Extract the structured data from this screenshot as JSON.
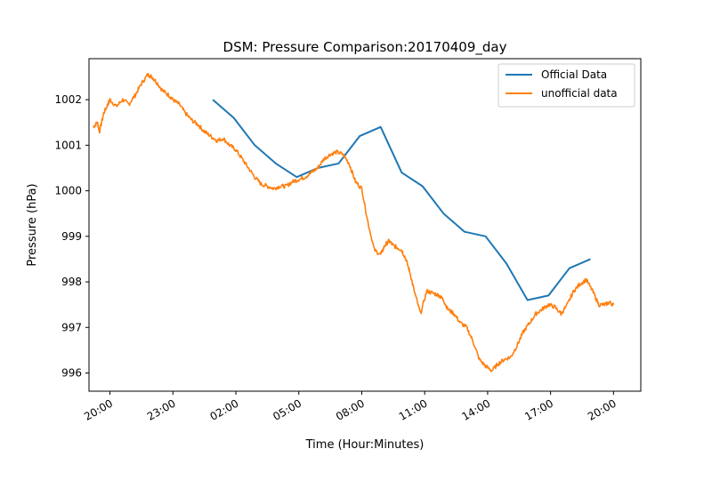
{
  "chart_data": {
    "type": "line",
    "title": "DSM: Pressure Comparison:20170409_day",
    "xlabel": "Time (Hour:Minutes)",
    "ylabel": "Pressure (hPa)",
    "x_unit": "hours from 20:00 on first day (axis shows clock time)",
    "xlim": [
      -1.0,
      25.3
    ],
    "ylim": [
      995.6,
      1002.9
    ],
    "x_ticks": [
      {
        "x": 0,
        "label": "20:00"
      },
      {
        "x": 3,
        "label": "23:00"
      },
      {
        "x": 6,
        "label": "02:00"
      },
      {
        "x": 9,
        "label": "05:00"
      },
      {
        "x": 12,
        "label": "08:00"
      },
      {
        "x": 15,
        "label": "11:00"
      },
      {
        "x": 18,
        "label": "14:00"
      },
      {
        "x": 21,
        "label": "17:00"
      },
      {
        "x": 24,
        "label": "20:00"
      }
    ],
    "y_ticks": [
      {
        "y": 996,
        "label": "996"
      },
      {
        "y": 997,
        "label": "997"
      },
      {
        "y": 998,
        "label": "998"
      },
      {
        "y": 999,
        "label": "999"
      },
      {
        "y": 1000,
        "label": "1000"
      },
      {
        "y": 1001,
        "label": "1001"
      },
      {
        "y": 1002,
        "label": "1002"
      }
    ],
    "grid": false,
    "legend": "top-right",
    "series": [
      {
        "name": "Official Data",
        "color": "#1f77b4",
        "x": [
          4.9,
          5.9,
          6.9,
          7.9,
          8.9,
          9.9,
          10.9,
          11.9,
          12.9,
          13.9,
          14.9,
          15.9,
          16.9,
          17.9,
          18.9,
          19.9,
          20.9,
          21.9,
          22.9
        ],
        "y": [
          1002.0,
          1001.6,
          1001.0,
          1000.6,
          1000.3,
          1000.5,
          1000.6,
          1001.2,
          1001.4,
          1000.4,
          1000.1,
          999.5,
          999.1,
          999.0,
          998.4,
          997.6,
          997.7,
          998.3,
          998.5
        ]
      },
      {
        "name": "unofficial data",
        "color": "#ff7f0e",
        "x": [
          -0.8,
          -0.6,
          -0.5,
          -0.3,
          -0.1,
          0.0,
          0.3,
          0.6,
          0.9,
          1.2,
          1.5,
          1.8,
          2.0,
          2.2,
          2.5,
          2.8,
          3.0,
          3.3,
          3.6,
          3.9,
          4.2,
          4.5,
          4.8,
          5.1,
          5.4,
          5.7,
          6.0,
          6.3,
          6.6,
          6.9,
          7.2,
          7.5,
          7.8,
          8.1,
          8.4,
          8.7,
          9.0,
          9.3,
          9.6,
          9.9,
          10.2,
          10.5,
          10.8,
          11.1,
          11.4,
          11.7,
          12.0,
          12.3,
          12.6,
          12.9,
          13.1,
          13.3,
          13.5,
          13.7,
          13.9,
          14.1,
          14.3,
          14.5,
          14.8,
          15.1,
          15.4,
          15.7,
          15.9,
          16.1,
          16.4,
          16.7,
          17.0,
          17.3,
          17.6,
          17.9,
          18.2,
          18.5,
          18.8,
          19.1,
          19.4,
          19.7,
          20.0,
          20.3,
          20.6,
          20.9,
          21.2,
          21.5,
          21.8,
          22.1,
          22.4,
          22.7,
          23.0,
          23.3,
          23.6,
          23.8,
          24.0
        ],
        "y": [
          1001.4,
          1001.5,
          1001.3,
          1001.7,
          1001.9,
          1002.0,
          1001.85,
          1002.0,
          1001.9,
          1002.1,
          1002.35,
          1002.55,
          1002.5,
          1002.4,
          1002.2,
          1002.1,
          1002.0,
          1001.9,
          1001.7,
          1001.55,
          1001.45,
          1001.3,
          1001.2,
          1001.1,
          1001.15,
          1001.0,
          1000.9,
          1000.7,
          1000.5,
          1000.3,
          1000.15,
          1000.1,
          1000.05,
          1000.1,
          1000.1,
          1000.2,
          1000.25,
          1000.3,
          1000.4,
          1000.5,
          1000.7,
          1000.8,
          1000.85,
          1000.8,
          1000.6,
          1000.2,
          1000.05,
          999.3,
          998.7,
          998.6,
          998.8,
          998.9,
          998.8,
          998.75,
          998.7,
          998.5,
          998.2,
          997.8,
          997.3,
          997.8,
          997.75,
          997.7,
          997.6,
          997.4,
          997.3,
          997.1,
          997.0,
          996.7,
          996.3,
          996.15,
          996.05,
          996.2,
          996.3,
          996.35,
          996.6,
          996.9,
          997.1,
          997.3,
          997.4,
          997.5,
          997.45,
          997.3,
          997.5,
          997.8,
          997.95,
          998.05,
          997.8,
          997.5,
          997.5,
          997.55,
          997.5
        ]
      }
    ]
  }
}
